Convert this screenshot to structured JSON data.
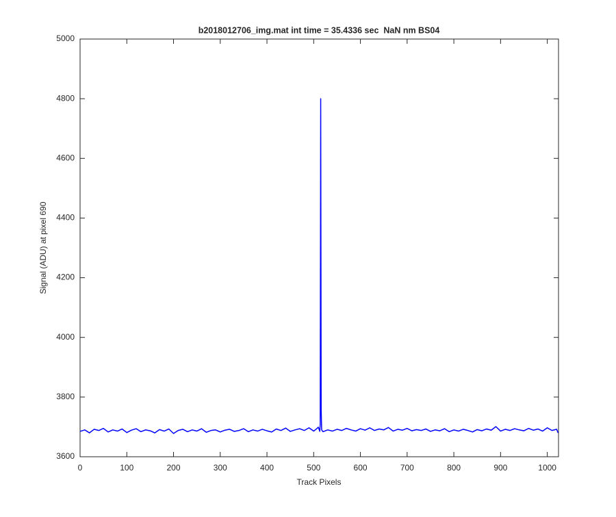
{
  "chart_data": {
    "type": "line",
    "title": "b2018012706_img.mat int time = 35.4336 sec  NaN nm BS04",
    "x_label": "Track Pixels",
    "y_label": "Signal (ADU) at pixel 690",
    "color": "#0000ff",
    "x": [
      0,
      10,
      20,
      30,
      40,
      50,
      60,
      70,
      80,
      90,
      100,
      110,
      120,
      130,
      140,
      150,
      160,
      170,
      180,
      190,
      200,
      210,
      220,
      230,
      240,
      250,
      260,
      270,
      280,
      290,
      300,
      310,
      320,
      330,
      340,
      350,
      360,
      370,
      380,
      390,
      400,
      410,
      420,
      430,
      440,
      450,
      460,
      470,
      480,
      490,
      500,
      505,
      510,
      512,
      513,
      514,
      515,
      516,
      517,
      520,
      530,
      540,
      550,
      560,
      570,
      580,
      590,
      600,
      610,
      620,
      630,
      640,
      650,
      660,
      670,
      680,
      690,
      700,
      710,
      720,
      730,
      740,
      750,
      760,
      770,
      780,
      790,
      800,
      810,
      820,
      830,
      840,
      850,
      860,
      870,
      880,
      890,
      900,
      910,
      920,
      930,
      940,
      950,
      960,
      970,
      980,
      990,
      1000,
      1010,
      1020,
      1023
    ],
    "values": [
      3685,
      3690,
      3680,
      3692,
      3688,
      3695,
      3683,
      3690,
      3686,
      3693,
      3681,
      3689,
      3694,
      3684,
      3690,
      3687,
      3680,
      3691,
      3686,
      3693,
      3678,
      3688,
      3692,
      3684,
      3690,
      3686,
      3694,
      3682,
      3688,
      3690,
      3683,
      3689,
      3692,
      3685,
      3688,
      3694,
      3684,
      3690,
      3686,
      3692,
      3687,
      3683,
      3693,
      3688,
      3696,
      3685,
      3690,
      3694,
      3688,
      3697,
      3686,
      3692,
      3699,
      3690,
      3685,
      3710,
      4800,
      3760,
      3690,
      3684,
      3690,
      3686,
      3692,
      3688,
      3695,
      3690,
      3686,
      3694,
      3689,
      3697,
      3688,
      3693,
      3690,
      3698,
      3686,
      3692,
      3689,
      3695,
      3687,
      3691,
      3688,
      3693,
      3685,
      3690,
      3687,
      3694,
      3684,
      3690,
      3686,
      3692,
      3688,
      3683,
      3691,
      3687,
      3693,
      3689,
      3701,
      3686,
      3692,
      3688,
      3694,
      3690,
      3687,
      3695,
      3689,
      3693,
      3686,
      3697,
      3688,
      3692,
      3680
    ],
    "xlim": [
      0,
      1024
    ],
    "ylim": [
      3600,
      5000
    ],
    "xticks": [
      0,
      100,
      200,
      300,
      400,
      500,
      600,
      700,
      800,
      900,
      1000
    ],
    "yticks": [
      3600,
      3800,
      4000,
      4200,
      4400,
      4600,
      4800,
      5000
    ],
    "grid": false
  }
}
